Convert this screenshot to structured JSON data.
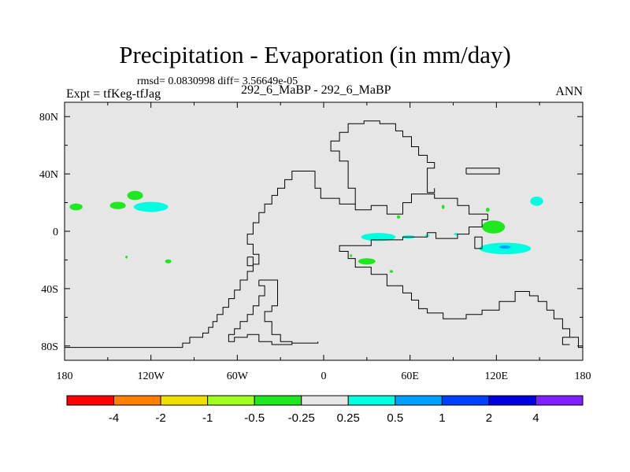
{
  "title": "Precipitation - Evaporation (in mm/day)",
  "stats": "rmsd= 0.0830998 diff= 3.56649e-05",
  "expt": "Expt = tfKeg-tfJag",
  "cases": "292_6_MaBP - 292_6_MaBP",
  "season": "ANN",
  "colors": {
    "ocean": "#e6e6e6",
    "coast": "#000000"
  },
  "lon_ticks": [
    {
      "lon": -180,
      "label": "180"
    },
    {
      "lon": -120,
      "label": "120W"
    },
    {
      "lon": -60,
      "label": "60W"
    },
    {
      "lon": 0,
      "label": "0"
    },
    {
      "lon": 60,
      "label": "60E"
    },
    {
      "lon": 120,
      "label": "120E"
    },
    {
      "lon": 180,
      "label": "180"
    }
  ],
  "lat_ticks": [
    {
      "lat": 80,
      "label": "80N"
    },
    {
      "lat": 40,
      "label": "40N"
    },
    {
      "lat": 0,
      "label": "0"
    },
    {
      "lat": -40,
      "label": "40S"
    },
    {
      "lat": -80,
      "label": "80S"
    }
  ],
  "colorbar": {
    "colors": [
      "#ff0000",
      "#ff7f00",
      "#f0e000",
      "#a0ff20",
      "#20e820",
      "#e6e6e6",
      "#00ffe0",
      "#00a0ff",
      "#0040ff",
      "#0000e0",
      "#8020ff"
    ],
    "labels": [
      "-4",
      "-2",
      "-1",
      "-0.5",
      "-0.25",
      "0.25",
      "0.5",
      "1",
      "2",
      "4"
    ]
  },
  "anomalies": [
    {
      "lon": -172,
      "lat": 17,
      "rx": 4.5,
      "ry": 2.4,
      "color": "#20e820"
    },
    {
      "lon": -143,
      "lat": 18,
      "rx": 5.5,
      "ry": 2.6,
      "color": "#20e820"
    },
    {
      "lon": -131,
      "lat": 25,
      "rx": 5.5,
      "ry": 3.2,
      "color": "#20e820"
    },
    {
      "lon": -120,
      "lat": 17,
      "rx": 12,
      "ry": 3.5,
      "color": "#00ffe0"
    },
    {
      "lon": -108,
      "lat": -21,
      "rx": 2.2,
      "ry": 1.4,
      "color": "#20e820"
    },
    {
      "lon": -137,
      "lat": -18,
      "rx": 0.8,
      "ry": 1.0,
      "color": "#20e820"
    },
    {
      "lon": 30,
      "lat": -21,
      "rx": 6,
      "ry": 2.2,
      "color": "#20e820"
    },
    {
      "lon": 38,
      "lat": -4,
      "rx": 12,
      "ry": 2.8,
      "color": "#00ffe0"
    },
    {
      "lon": 59,
      "lat": -4,
      "rx": 4.5,
      "ry": 1.2,
      "color": "#00ffe0"
    },
    {
      "lon": 92,
      "lat": -2,
      "rx": 1.5,
      "ry": 0.9,
      "color": "#00ffe0"
    },
    {
      "lon": 72,
      "lat": -3,
      "rx": 1.5,
      "ry": 0.9,
      "color": "#00ffe0"
    },
    {
      "lon": 52,
      "lat": 10,
      "rx": 1.2,
      "ry": 1.2,
      "color": "#20e820"
    },
    {
      "lon": 83,
      "lat": 17,
      "rx": 1.0,
      "ry": 1.5,
      "color": "#20e820"
    },
    {
      "lon": 114,
      "lat": 15,
      "rx": 1.3,
      "ry": 1.5,
      "color": "#20e820"
    },
    {
      "lon": 118,
      "lat": 3,
      "rx": 8,
      "ry": 4.5,
      "color": "#20e820"
    },
    {
      "lon": 126,
      "lat": -12,
      "rx": 18,
      "ry": 4.0,
      "color": "#00ffe0"
    },
    {
      "lon": 126,
      "lat": -11,
      "rx": 4,
      "ry": 1.1,
      "color": "#00a0ff"
    },
    {
      "lon": 148,
      "lat": 21,
      "rx": 4.5,
      "ry": 3.2,
      "color": "#00ffe0"
    },
    {
      "lon": 47,
      "lat": -28,
      "rx": 1.2,
      "ry": 1.0,
      "color": "#20e820"
    },
    {
      "lon": 19,
      "lat": -17,
      "rx": 0.8,
      "ry": 1.0,
      "color": "#20e820"
    }
  ],
  "coastlines": [
    [
      [
        -180,
        -81
      ],
      [
        -98,
        -81
      ],
      [
        -98,
        -78
      ],
      [
        -93,
        -78
      ],
      [
        -93,
        -74
      ],
      [
        -84,
        -74
      ],
      [
        -84,
        -71
      ],
      [
        -80,
        -71
      ],
      [
        -80,
        -67
      ],
      [
        -77,
        -67
      ],
      [
        -77,
        -63
      ],
      [
        -74,
        -63
      ],
      [
        -74,
        -58
      ],
      [
        -70,
        -58
      ],
      [
        -70,
        -53
      ],
      [
        -66,
        -53
      ],
      [
        -66,
        -47
      ],
      [
        -62,
        -47
      ],
      [
        -62,
        -41
      ],
      [
        -58,
        -41
      ],
      [
        -58,
        -34
      ],
      [
        -53,
        -34
      ],
      [
        -53,
        -28
      ],
      [
        -49,
        -28
      ],
      [
        -49,
        -23
      ],
      [
        -45,
        -23
      ],
      [
        -45,
        -16
      ],
      [
        -49,
        -16
      ],
      [
        -49,
        -9
      ],
      [
        -53,
        -9
      ],
      [
        -53,
        -2
      ],
      [
        -49,
        -2
      ],
      [
        -49,
        6
      ],
      [
        -45,
        6
      ],
      [
        -45,
        13
      ],
      [
        -41,
        13
      ],
      [
        -41,
        19
      ],
      [
        -36,
        19
      ],
      [
        -36,
        25
      ],
      [
        -32,
        25
      ],
      [
        -32,
        30
      ],
      [
        -27,
        30
      ],
      [
        -27,
        36
      ],
      [
        -22,
        36
      ],
      [
        -22,
        42
      ],
      [
        -6,
        42
      ],
      [
        -6,
        30
      ],
      [
        -2,
        30
      ],
      [
        -2,
        23
      ],
      [
        11,
        23
      ],
      [
        11,
        19
      ],
      [
        22,
        19
      ],
      [
        22,
        15
      ],
      [
        33,
        15
      ],
      [
        33,
        18
      ],
      [
        44,
        18
      ],
      [
        44,
        12
      ],
      [
        55,
        12
      ],
      [
        55,
        20
      ],
      [
        61,
        20
      ],
      [
        61,
        26
      ],
      [
        77,
        26
      ],
      [
        77,
        23
      ],
      [
        93,
        23
      ],
      [
        93,
        18
      ],
      [
        101,
        18
      ],
      [
        101,
        12
      ],
      [
        114,
        12
      ]
    ],
    [
      [
        -45,
        -34
      ],
      [
        -45,
        -38
      ],
      [
        -41,
        -38
      ],
      [
        -41,
        -45
      ],
      [
        -45,
        -45
      ],
      [
        -45,
        -52
      ],
      [
        -49,
        -52
      ],
      [
        -49,
        -58
      ],
      [
        -53,
        -58
      ],
      [
        -53,
        -63
      ],
      [
        -58,
        -63
      ],
      [
        -58,
        -68
      ],
      [
        -62,
        -68
      ],
      [
        -62,
        -72
      ],
      [
        -66,
        -72
      ],
      [
        -66,
        -77
      ],
      [
        -62,
        -77
      ],
      [
        -62,
        -74
      ],
      [
        -53,
        -74
      ],
      [
        -53,
        -72
      ],
      [
        -45,
        -72
      ],
      [
        -45,
        -77
      ],
      [
        -36,
        -77
      ],
      [
        -36,
        -79
      ],
      [
        -22,
        -79
      ],
      [
        -22,
        -77
      ],
      [
        -30,
        -77
      ],
      [
        -30,
        -72
      ],
      [
        -36,
        -72
      ],
      [
        -36,
        -63
      ],
      [
        -41,
        -63
      ],
      [
        -41,
        -56
      ],
      [
        -36,
        -56
      ],
      [
        -36,
        -52
      ],
      [
        -32,
        -52
      ],
      [
        -32,
        -34
      ],
      [
        -45,
        -34
      ]
    ],
    [
      [
        -53,
        -18
      ],
      [
        -53,
        -24
      ],
      [
        -49,
        -24
      ],
      [
        -49,
        -18
      ],
      [
        -53,
        -18
      ]
    ],
    [
      [
        -4,
        -77
      ],
      [
        -4,
        -78
      ],
      [
        -22,
        -78
      ]
    ],
    [
      [
        114,
        12
      ],
      [
        114,
        8
      ],
      [
        110,
        8
      ],
      [
        110,
        3
      ],
      [
        101,
        3
      ],
      [
        101,
        -2
      ],
      [
        93,
        -2
      ],
      [
        93,
        -5
      ],
      [
        78,
        -5
      ],
      [
        78,
        -1
      ],
      [
        72,
        -1
      ],
      [
        72,
        -4
      ],
      [
        55,
        -4
      ],
      [
        55,
        -6
      ],
      [
        33,
        -6
      ],
      [
        33,
        -10
      ],
      [
        11,
        -10
      ],
      [
        11,
        -14
      ],
      [
        17,
        -14
      ],
      [
        17,
        -19
      ],
      [
        22,
        -19
      ],
      [
        22,
        -25
      ],
      [
        33,
        -25
      ],
      [
        33,
        -30
      ],
      [
        44,
        -30
      ],
      [
        44,
        -38
      ],
      [
        55,
        -38
      ],
      [
        55,
        -43
      ],
      [
        61,
        -43
      ],
      [
        61,
        -48
      ],
      [
        66,
        -48
      ],
      [
        66,
        -54
      ],
      [
        72,
        -54
      ],
      [
        72,
        -57
      ],
      [
        83,
        -57
      ],
      [
        83,
        -61
      ],
      [
        99,
        -61
      ],
      [
        99,
        -58
      ],
      [
        110,
        -58
      ],
      [
        110,
        -55
      ],
      [
        122,
        -55
      ],
      [
        122,
        -49
      ],
      [
        133,
        -49
      ],
      [
        133,
        -42
      ],
      [
        143,
        -42
      ],
      [
        143,
        -45
      ],
      [
        149,
        -45
      ],
      [
        149,
        -49
      ],
      [
        155,
        -49
      ],
      [
        155,
        -55
      ],
      [
        160,
        -55
      ],
      [
        160,
        -61
      ],
      [
        166,
        -61
      ],
      [
        166,
        -68
      ],
      [
        171,
        -68
      ],
      [
        171,
        -74
      ],
      [
        177,
        -74
      ],
      [
        177,
        -81
      ],
      [
        180,
        -81
      ]
    ],
    [
      [
        171,
        -74
      ],
      [
        166,
        -74
      ],
      [
        166,
        -79
      ],
      [
        171,
        -79
      ]
    ],
    [
      [
        110,
        -6
      ],
      [
        110,
        -12
      ],
      [
        105,
        -12
      ],
      [
        105,
        -4
      ],
      [
        110,
        -4
      ],
      [
        110,
        -6
      ]
    ],
    [
      [
        99,
        40
      ],
      [
        99,
        44
      ],
      [
        122,
        44
      ],
      [
        122,
        40
      ],
      [
        99,
        40
      ]
    ],
    [
      [
        22,
        19
      ],
      [
        22,
        30
      ],
      [
        17,
        30
      ],
      [
        17,
        49
      ],
      [
        11,
        49
      ],
      [
        11,
        56
      ],
      [
        5,
        56
      ],
      [
        5,
        63
      ],
      [
        11,
        63
      ],
      [
        11,
        69
      ],
      [
        17,
        69
      ],
      [
        17,
        75
      ],
      [
        28,
        75
      ],
      [
        28,
        77
      ],
      [
        39,
        77
      ],
      [
        39,
        75
      ],
      [
        50,
        75
      ],
      [
        50,
        70
      ],
      [
        55,
        70
      ],
      [
        55,
        66
      ],
      [
        61,
        66
      ],
      [
        61,
        59
      ],
      [
        66,
        59
      ],
      [
        66,
        53
      ],
      [
        72,
        53
      ],
      [
        72,
        48
      ],
      [
        77,
        48
      ],
      [
        77,
        44
      ],
      [
        72,
        44
      ],
      [
        72,
        27
      ],
      [
        77,
        27
      ],
      [
        77,
        30
      ]
    ]
  ]
}
